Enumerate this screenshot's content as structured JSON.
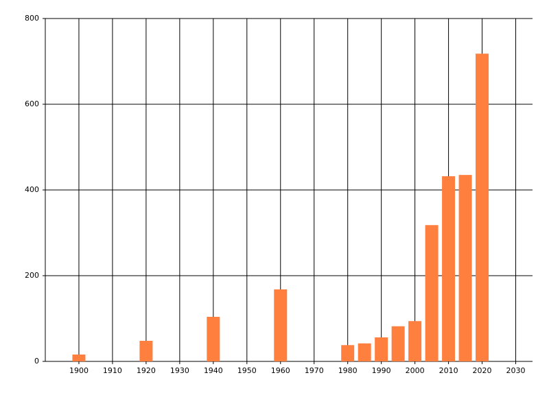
{
  "chart_data": {
    "type": "bar",
    "x": [
      1900,
      1920,
      1940,
      1960,
      1980,
      1985,
      1990,
      1995,
      2000,
      2005,
      2010,
      2015,
      2020
    ],
    "values": [
      16,
      48,
      104,
      168,
      38,
      42,
      56,
      82,
      94,
      318,
      432,
      435,
      718
    ],
    "color": "#ff7f3f",
    "xlim": [
      1890,
      2035
    ],
    "xticks": [
      1900,
      1910,
      1920,
      1930,
      1940,
      1950,
      1960,
      1970,
      1980,
      1990,
      2000,
      2010,
      2020,
      2030
    ],
    "ylim": [
      0,
      800
    ],
    "yticks": [
      0,
      200,
      400,
      600,
      800
    ],
    "grid": true
  }
}
